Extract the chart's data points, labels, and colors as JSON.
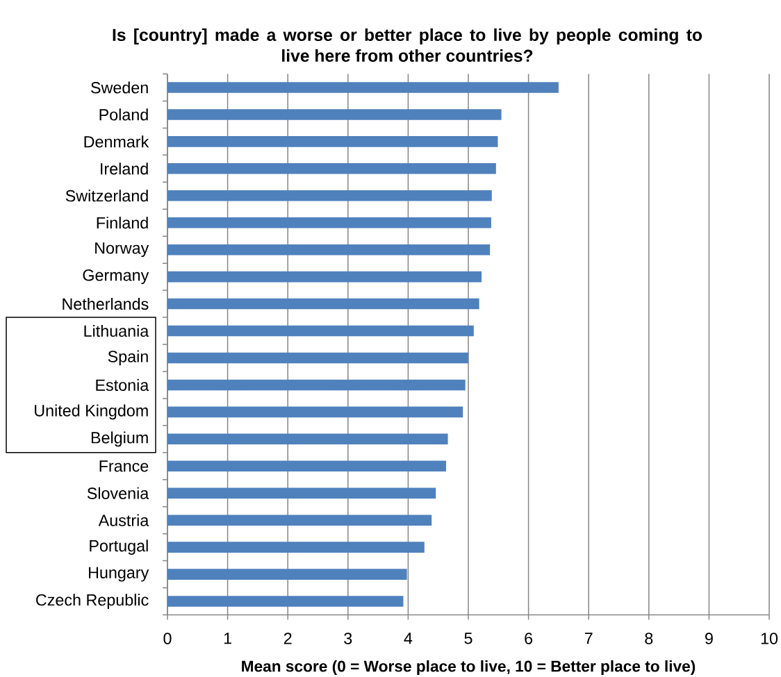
{
  "chart_data": {
    "type": "bar",
    "orientation": "horizontal",
    "title": "Is [country] made a worse or better place to live by people coming to live here from other countries?",
    "xlabel": "Mean score (0 = Worse place to live, 10 = Better place to live)",
    "categories": [
      "Sweden",
      "Poland",
      "Denmark",
      "Ireland",
      "Switzerland",
      "Finland",
      "Norway",
      "Germany",
      "Netherlands",
      "Lithuania",
      "Spain",
      "Estonia",
      "United Kingdom",
      "Belgium",
      "France",
      "Slovenia",
      "Austria",
      "Portugal",
      "Hungary",
      "Czech Republic"
    ],
    "values": [
      6.5,
      5.55,
      5.49,
      5.46,
      5.39,
      5.38,
      5.36,
      5.22,
      5.18,
      5.09,
      5.0,
      4.95,
      4.91,
      4.66,
      4.63,
      4.46,
      4.39,
      4.27,
      3.98,
      3.92
    ],
    "color": "#4f81bd",
    "xlim": [
      0,
      10
    ],
    "xticks": [
      0,
      1,
      2,
      3,
      4,
      5,
      6,
      7,
      8,
      9,
      10
    ],
    "grid": "x"
  }
}
